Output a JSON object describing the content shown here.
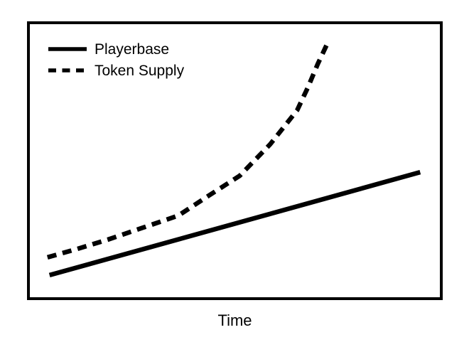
{
  "figure": {
    "x_axis_label": "Time",
    "background_color": "#ffffff",
    "frame_color": "#000000",
    "line_color": "#000000"
  },
  "legend": {
    "position": "top-left",
    "items": [
      {
        "label": "Playerbase",
        "style": "solid"
      },
      {
        "label": "Token Supply",
        "style": "dashed"
      }
    ]
  },
  "chart_data": {
    "type": "line",
    "title": "",
    "xlabel": "Time",
    "ylabel": "",
    "grid": false,
    "axes_numeric": false,
    "x_ticks": [],
    "y_ticks": [],
    "xlim": [
      0,
      1
    ],
    "ylim": [
      0,
      1
    ],
    "legend_position": "top-left",
    "series": [
      {
        "name": "Playerbase",
        "line_style": "solid",
        "color": "#000000",
        "stroke_width": 6.5,
        "shape": "linear",
        "points": [
          [
            0.048,
            0.081
          ],
          [
            0.952,
            0.458
          ]
        ]
      },
      {
        "name": "Token Supply",
        "line_style": "dashed",
        "color": "#000000",
        "stroke_width": 6.5,
        "shape": "exponential",
        "points": [
          [
            0.043,
            0.146
          ],
          [
            0.116,
            0.177
          ],
          [
            0.19,
            0.211
          ],
          [
            0.276,
            0.255
          ],
          [
            0.362,
            0.299
          ],
          [
            0.436,
            0.372
          ],
          [
            0.512,
            0.445
          ],
          [
            0.586,
            0.56
          ],
          [
            0.652,
            0.685
          ],
          [
            0.678,
            0.768
          ],
          [
            0.702,
            0.854
          ],
          [
            0.724,
            0.924
          ]
        ]
      }
    ]
  }
}
